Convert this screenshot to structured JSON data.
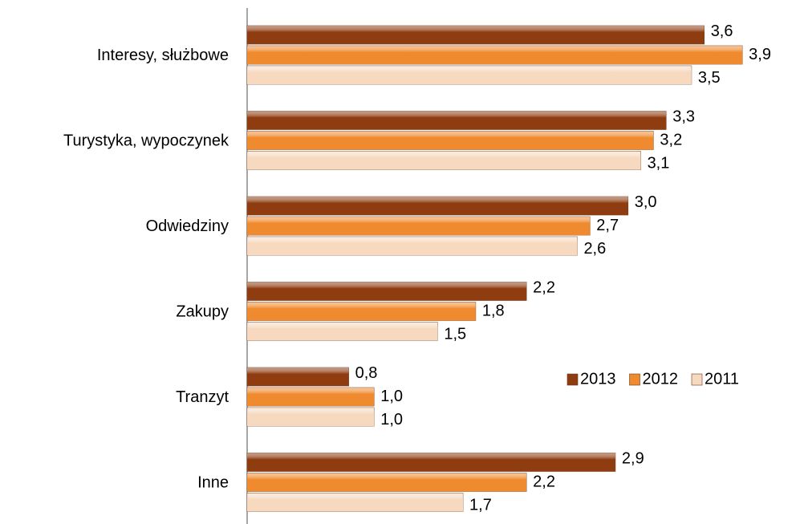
{
  "chart_data": {
    "type": "hbar",
    "categories": [
      "Interesy, służbowe",
      "Turystyka, wypoczynek",
      "Odwiedziny",
      "Zakupy",
      "Tranzyt",
      "Inne"
    ],
    "series": [
      {
        "name": "2013",
        "color": "#8e3c10",
        "values": [
          3.6,
          3.3,
          3.0,
          2.2,
          0.8,
          2.9
        ],
        "value_labels": [
          "3,6",
          "3,3",
          "3,0",
          "2,2",
          "0,8",
          "2,9"
        ]
      },
      {
        "name": "2012",
        "color": "#f08a2e",
        "values": [
          3.9,
          3.2,
          2.7,
          1.8,
          1.0,
          2.2
        ],
        "value_labels": [
          "3,9",
          "3,2",
          "2,7",
          "1,8",
          "1,0",
          "2,2"
        ]
      },
      {
        "name": "2011",
        "color": "#f6d9bf",
        "values": [
          3.5,
          3.1,
          2.6,
          1.5,
          1.0,
          1.7
        ],
        "value_labels": [
          "3,5",
          "3,1",
          "2,6",
          "1,5",
          "1,0",
          "1,7"
        ]
      }
    ],
    "xlim": [
      0,
      4
    ],
    "legend": "right"
  }
}
